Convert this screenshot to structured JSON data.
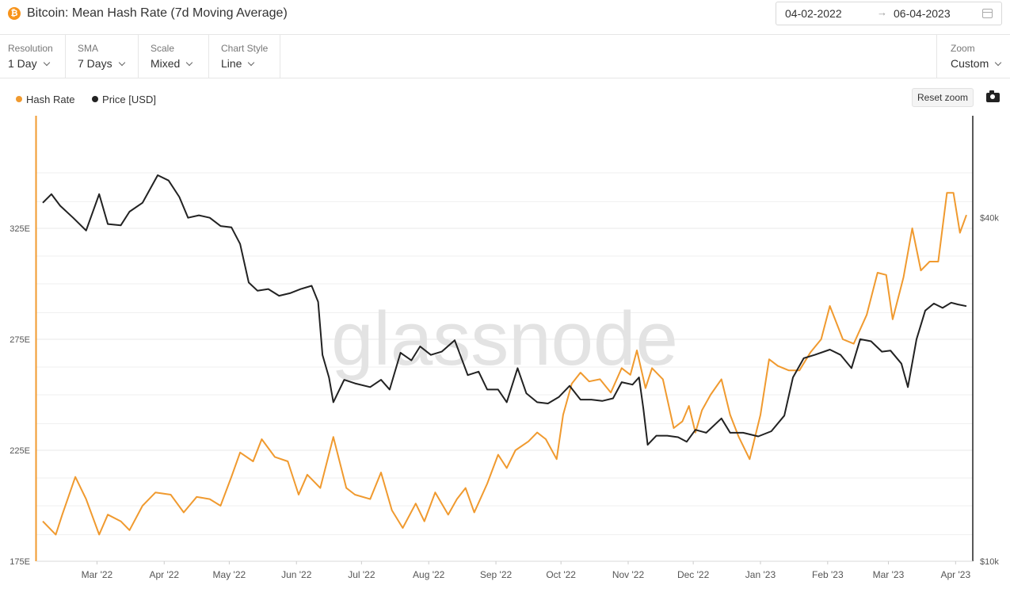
{
  "header": {
    "title": "Bitcoin: Mean Hash Rate (7d Moving Average)",
    "icon": "bitcoin-icon",
    "date_start": "04-02-2022",
    "date_end": "06-04-2023"
  },
  "controls": {
    "resolution": {
      "label": "Resolution",
      "value": "1 Day"
    },
    "sma": {
      "label": "SMA",
      "value": "7 Days"
    },
    "scale": {
      "label": "Scale",
      "value": "Mixed"
    },
    "chart_style": {
      "label": "Chart Style",
      "value": "Line"
    },
    "zoom": {
      "label": "Zoom",
      "value": "Custom"
    }
  },
  "toolbar": {
    "reset_zoom": "Reset zoom",
    "camera": "camera-icon"
  },
  "watermark": "glassnode",
  "colors": {
    "hash_rate": "#f09a2f",
    "price": "#222222"
  },
  "chart_data": {
    "type": "line",
    "x_range": [
      "2022-02-04",
      "2023-04-06"
    ],
    "x_ticks": [
      "Mar '22",
      "Apr '22",
      "May '22",
      "Jun '22",
      "Jul '22",
      "Aug '22",
      "Sep '22",
      "Oct '22",
      "Nov '22",
      "Dec '22",
      "Jan '23",
      "Feb '23",
      "Mar '23",
      "Apr '23"
    ],
    "x_tick_dates": [
      "2022-03-01",
      "2022-04-01",
      "2022-05-01",
      "2022-06-01",
      "2022-07-01",
      "2022-08-01",
      "2022-09-01",
      "2022-10-01",
      "2022-11-01",
      "2022-12-01",
      "2023-01-01",
      "2023-02-01",
      "2023-03-01",
      "2023-04-01"
    ],
    "y_left": {
      "range": [
        175,
        375
      ],
      "ticks": [
        175,
        225,
        275,
        325
      ],
      "tick_labels": [
        "175E",
        "225E",
        "275E",
        "325E"
      ]
    },
    "y_right": {
      "scale": "log",
      "range": [
        10000,
        60000
      ],
      "ticks": [
        10000,
        40000
      ],
      "tick_labels": [
        "$10k",
        "$40k"
      ]
    },
    "legend": {
      "position": "top-left"
    },
    "series": [
      {
        "name": "Hash Rate",
        "axis": "left",
        "points": [
          [
            "2022-02-04",
            193
          ],
          [
            "2022-02-10",
            187
          ],
          [
            "2022-02-13",
            196
          ],
          [
            "2022-02-19",
            213
          ],
          [
            "2022-02-24",
            203
          ],
          [
            "2022-03-02",
            187
          ],
          [
            "2022-03-06",
            196
          ],
          [
            "2022-03-12",
            193
          ],
          [
            "2022-03-16",
            189
          ],
          [
            "2022-03-22",
            200
          ],
          [
            "2022-03-28",
            206
          ],
          [
            "2022-04-04",
            205
          ],
          [
            "2022-04-10",
            197
          ],
          [
            "2022-04-16",
            204
          ],
          [
            "2022-04-22",
            203
          ],
          [
            "2022-04-27",
            200
          ],
          [
            "2022-05-02",
            213
          ],
          [
            "2022-05-06",
            224
          ],
          [
            "2022-05-12",
            220
          ],
          [
            "2022-05-16",
            230
          ],
          [
            "2022-05-22",
            222
          ],
          [
            "2022-05-28",
            220
          ],
          [
            "2022-06-02",
            205
          ],
          [
            "2022-06-06",
            214
          ],
          [
            "2022-06-12",
            208
          ],
          [
            "2022-06-18",
            231
          ],
          [
            "2022-06-24",
            208
          ],
          [
            "2022-06-28",
            205
          ],
          [
            "2022-07-05",
            203
          ],
          [
            "2022-07-10",
            215
          ],
          [
            "2022-07-15",
            198
          ],
          [
            "2022-07-20",
            190
          ],
          [
            "2022-07-26",
            201
          ],
          [
            "2022-07-30",
            193
          ],
          [
            "2022-08-04",
            206
          ],
          [
            "2022-08-10",
            196
          ],
          [
            "2022-08-14",
            203
          ],
          [
            "2022-08-18",
            208
          ],
          [
            "2022-08-22",
            197
          ],
          [
            "2022-08-28",
            210
          ],
          [
            "2022-09-02",
            223
          ],
          [
            "2022-09-06",
            217
          ],
          [
            "2022-09-10",
            225
          ],
          [
            "2022-09-16",
            229
          ],
          [
            "2022-09-20",
            233
          ],
          [
            "2022-09-24",
            230
          ],
          [
            "2022-09-29",
            221
          ],
          [
            "2022-10-02",
            241
          ],
          [
            "2022-10-06",
            255
          ],
          [
            "2022-10-10",
            260
          ],
          [
            "2022-10-14",
            256
          ],
          [
            "2022-10-19",
            257
          ],
          [
            "2022-10-24",
            251
          ],
          [
            "2022-10-29",
            262
          ],
          [
            "2022-11-02",
            259
          ],
          [
            "2022-11-05",
            270
          ],
          [
            "2022-11-09",
            253
          ],
          [
            "2022-11-12",
            262
          ],
          [
            "2022-11-17",
            257
          ],
          [
            "2022-11-22",
            235
          ],
          [
            "2022-11-26",
            238
          ],
          [
            "2022-11-29",
            245
          ],
          [
            "2022-12-02",
            233
          ],
          [
            "2022-12-05",
            243
          ],
          [
            "2022-12-09",
            250
          ],
          [
            "2022-12-14",
            257
          ],
          [
            "2022-12-18",
            241
          ],
          [
            "2022-12-22",
            231
          ],
          [
            "2022-12-27",
            221
          ],
          [
            "2023-01-01",
            241
          ],
          [
            "2023-01-05",
            266
          ],
          [
            "2023-01-09",
            263
          ],
          [
            "2023-01-14",
            261
          ],
          [
            "2023-01-19",
            261
          ],
          [
            "2023-01-24",
            269
          ],
          [
            "2023-01-29",
            275
          ],
          [
            "2023-02-02",
            290
          ],
          [
            "2023-02-08",
            275
          ],
          [
            "2023-02-13",
            273
          ],
          [
            "2023-02-19",
            286
          ],
          [
            "2023-02-24",
            305
          ],
          [
            "2023-02-28",
            304
          ],
          [
            "2023-03-03",
            284
          ],
          [
            "2023-03-08",
            303
          ],
          [
            "2023-03-12",
            325
          ],
          [
            "2023-03-16",
            306
          ],
          [
            "2023-03-20",
            310
          ],
          [
            "2023-03-24",
            310
          ],
          [
            "2023-03-28",
            341
          ],
          [
            "2023-03-31",
            341
          ],
          [
            "2023-04-03",
            323
          ],
          [
            "2023-04-06",
            331
          ]
        ]
      },
      {
        "name": "Price [USD]",
        "axis": "right",
        "points": [
          [
            "2022-02-04",
            42500
          ],
          [
            "2022-02-08",
            44000
          ],
          [
            "2022-02-12",
            42000
          ],
          [
            "2022-02-18",
            40000
          ],
          [
            "2022-02-24",
            38000
          ],
          [
            "2022-03-02",
            44000
          ],
          [
            "2022-03-06",
            39000
          ],
          [
            "2022-03-12",
            38800
          ],
          [
            "2022-03-16",
            41000
          ],
          [
            "2022-03-22",
            42500
          ],
          [
            "2022-03-29",
            47500
          ],
          [
            "2022-04-03",
            46500
          ],
          [
            "2022-04-08",
            43500
          ],
          [
            "2022-04-12",
            40000
          ],
          [
            "2022-04-17",
            40400
          ],
          [
            "2022-04-22",
            40000
          ],
          [
            "2022-04-27",
            38700
          ],
          [
            "2022-05-02",
            38500
          ],
          [
            "2022-05-06",
            36000
          ],
          [
            "2022-05-10",
            30800
          ],
          [
            "2022-05-14",
            29800
          ],
          [
            "2022-05-19",
            30000
          ],
          [
            "2022-05-24",
            29200
          ],
          [
            "2022-05-29",
            29500
          ],
          [
            "2022-06-03",
            30000
          ],
          [
            "2022-06-08",
            30400
          ],
          [
            "2022-06-11",
            28500
          ],
          [
            "2022-06-13",
            23000
          ],
          [
            "2022-06-16",
            21000
          ],
          [
            "2022-06-18",
            19000
          ],
          [
            "2022-06-23",
            20800
          ],
          [
            "2022-06-28",
            20500
          ],
          [
            "2022-07-05",
            20200
          ],
          [
            "2022-07-10",
            20800
          ],
          [
            "2022-07-14",
            20000
          ],
          [
            "2022-07-19",
            23200
          ],
          [
            "2022-07-24",
            22500
          ],
          [
            "2022-07-28",
            23800
          ],
          [
            "2022-08-02",
            23000
          ],
          [
            "2022-08-07",
            23300
          ],
          [
            "2022-08-13",
            24400
          ],
          [
            "2022-08-19",
            21200
          ],
          [
            "2022-08-24",
            21500
          ],
          [
            "2022-08-28",
            20000
          ],
          [
            "2022-09-02",
            20000
          ],
          [
            "2022-09-06",
            19000
          ],
          [
            "2022-09-11",
            21800
          ],
          [
            "2022-09-15",
            19700
          ],
          [
            "2022-09-20",
            19000
          ],
          [
            "2022-09-25",
            18900
          ],
          [
            "2022-09-30",
            19400
          ],
          [
            "2022-10-05",
            20300
          ],
          [
            "2022-10-10",
            19200
          ],
          [
            "2022-10-15",
            19200
          ],
          [
            "2022-10-20",
            19100
          ],
          [
            "2022-10-25",
            19300
          ],
          [
            "2022-10-29",
            20600
          ],
          [
            "2022-11-03",
            20400
          ],
          [
            "2022-11-06",
            21000
          ],
          [
            "2022-11-08",
            18500
          ],
          [
            "2022-11-10",
            16000
          ],
          [
            "2022-11-14",
            16600
          ],
          [
            "2022-11-19",
            16600
          ],
          [
            "2022-11-24",
            16500
          ],
          [
            "2022-11-28",
            16200
          ],
          [
            "2022-12-02",
            17000
          ],
          [
            "2022-12-07",
            16800
          ],
          [
            "2022-12-14",
            17800
          ],
          [
            "2022-12-18",
            16800
          ],
          [
            "2022-12-24",
            16800
          ],
          [
            "2022-12-31",
            16550
          ],
          [
            "2023-01-06",
            16900
          ],
          [
            "2023-01-12",
            18000
          ],
          [
            "2023-01-16",
            21000
          ],
          [
            "2023-01-21",
            22700
          ],
          [
            "2023-01-26",
            23000
          ],
          [
            "2023-02-02",
            23500
          ],
          [
            "2023-02-07",
            23000
          ],
          [
            "2023-02-12",
            21800
          ],
          [
            "2023-02-16",
            24500
          ],
          [
            "2023-02-21",
            24300
          ],
          [
            "2023-02-26",
            23300
          ],
          [
            "2023-03-02",
            23400
          ],
          [
            "2023-03-07",
            22200
          ],
          [
            "2023-03-10",
            20200
          ],
          [
            "2023-03-14",
            24500
          ],
          [
            "2023-03-18",
            27500
          ],
          [
            "2023-03-22",
            28300
          ],
          [
            "2023-03-26",
            27800
          ],
          [
            "2023-03-30",
            28400
          ],
          [
            "2023-04-02",
            28200
          ],
          [
            "2023-04-06",
            28000
          ]
        ]
      }
    ]
  }
}
